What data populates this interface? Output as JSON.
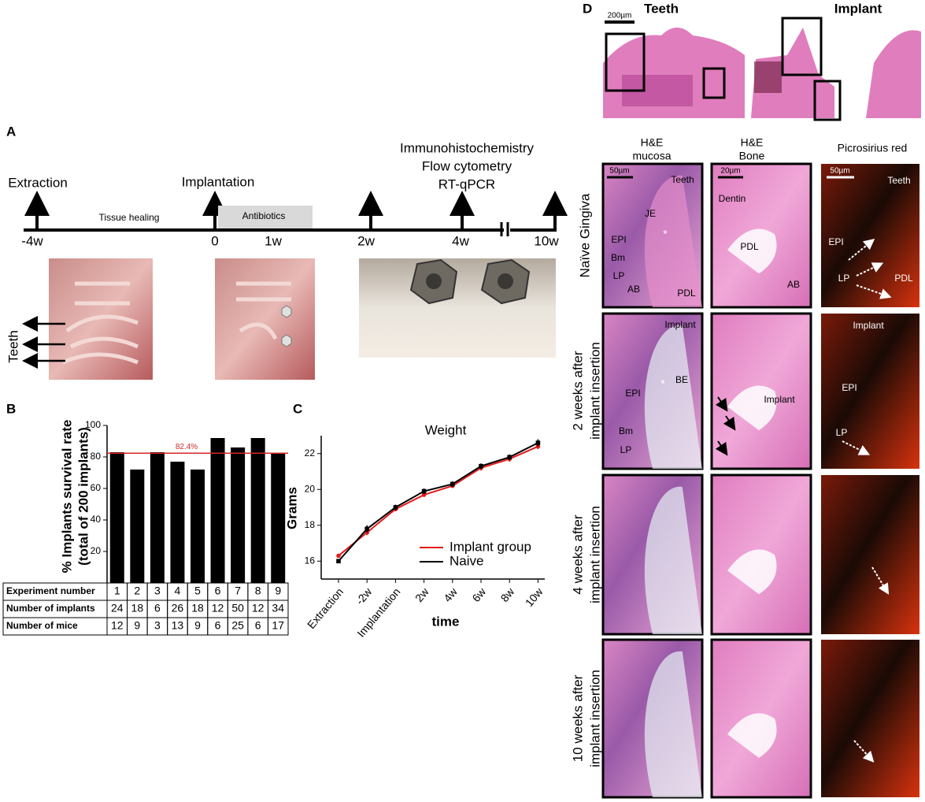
{
  "panel_a": {
    "label": "A",
    "events": [
      "Extraction",
      "Implantation"
    ],
    "analyses": [
      "Immunohistochemistry",
      "Flow cytometry",
      "RT-qPCR"
    ],
    "phases": [
      "Tissue healing",
      "Antibiotics"
    ],
    "timepoints": [
      "-4w",
      "0",
      "1w",
      "2w",
      "4w",
      "10w"
    ],
    "photo_label": "Teeth"
  },
  "chart_data": [
    {
      "type": "bar",
      "panel": "B",
      "ylabel": [
        "% Implants survival rate",
        "(total of 200 implants)"
      ],
      "category_label": "Experiment number",
      "categories": [
        1,
        2,
        3,
        4,
        5,
        6,
        7,
        8,
        9
      ],
      "values": [
        83,
        72,
        83,
        77,
        72,
        92,
        86,
        92,
        82
      ],
      "color": "#000000",
      "ylim": [
        0,
        100
      ],
      "yticks": [
        20,
        40,
        60,
        80,
        100
      ],
      "reference_line": {
        "value": 82.4,
        "label": "82.4%",
        "color": "#d62728"
      },
      "table_rows": [
        {
          "name": "Number of implants",
          "values": [
            24,
            18,
            6,
            26,
            18,
            12,
            50,
            12,
            34
          ]
        },
        {
          "name": "Number of mice",
          "values": [
            12,
            9,
            3,
            13,
            9,
            6,
            25,
            6,
            17
          ]
        }
      ]
    },
    {
      "type": "line",
      "panel": "C",
      "title": "Weight",
      "ylabel": "Grams",
      "xlabel": "time",
      "categories": [
        "Extraction",
        "-2w",
        "Implantation",
        "2w",
        "4w",
        "6w",
        "8w",
        "10w"
      ],
      "series": [
        {
          "name": "Implant group",
          "color": "#e31a1c",
          "values": [
            16.3,
            17.6,
            18.9,
            19.7,
            20.2,
            21.2,
            21.7,
            22.4
          ],
          "errors": [
            0.1,
            0.15,
            0.1,
            0.1,
            0.1,
            0.15,
            0.15,
            0.15
          ]
        },
        {
          "name": "Naive",
          "color": "#000000",
          "values": [
            16.0,
            17.8,
            19.0,
            19.9,
            20.3,
            21.3,
            21.8,
            22.6
          ],
          "errors": [
            0.1,
            0.2,
            0.15,
            0.15,
            0.15,
            0.15,
            0.15,
            0.2
          ]
        }
      ],
      "ylim": [
        15,
        23
      ],
      "yticks": [
        16,
        18,
        20,
        22
      ],
      "legend": "lower right"
    }
  ],
  "panel_d": {
    "label": "D",
    "top_titles": [
      "Teeth",
      "Implant"
    ],
    "top_scale": "200µm",
    "columns": [
      [
        "H&E",
        "mucosa"
      ],
      [
        "H&E",
        "Bone"
      ],
      [
        "Picrosirius red"
      ]
    ],
    "rows": [
      [
        "Naïve Gingiva"
      ],
      [
        "2 weeks after",
        "implant insertion"
      ],
      [
        "4 weeks after",
        "implant insertion"
      ],
      [
        "10 weeks after",
        "implant insertion"
      ]
    ],
    "annotations": [
      "50µm",
      "Teeth",
      "JE",
      "EPI",
      "Bm",
      "LP",
      "AB",
      "PDL",
      "20µm",
      "Dentin",
      "PDL",
      "AB",
      "50µm",
      "Teeth",
      "EPI",
      "LP",
      "PDL",
      "Implant",
      "BE",
      "EPI",
      "Bm",
      "LP",
      "Implant",
      "Implant",
      "EPI",
      "LP",
      "*",
      "*"
    ]
  }
}
